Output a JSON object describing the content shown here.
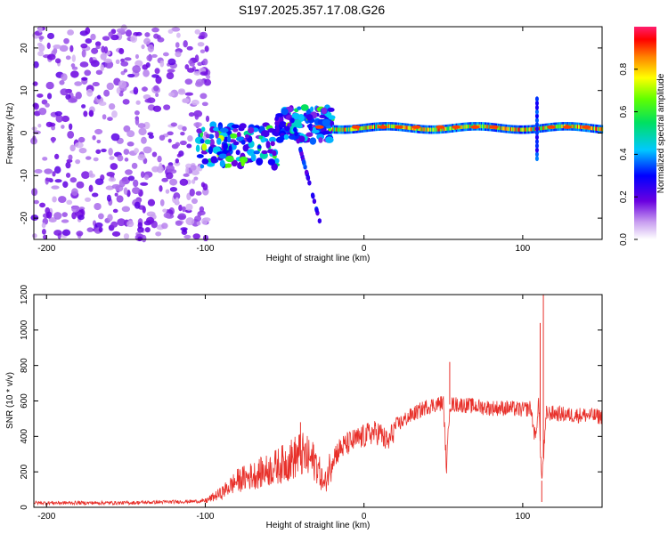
{
  "title": "S197.2025.357.17.08.G26",
  "chart_data": [
    {
      "type": "heatmap",
      "xlabel": "Height of straight line (km)",
      "ylabel": "Frequency (Hz)",
      "xlim": [
        -208,
        150
      ],
      "ylim": [
        -25,
        25
      ],
      "xticks": [
        -200,
        -100,
        0,
        100
      ],
      "xtick_labels": [
        "-200",
        "-100",
        "0",
        "100"
      ],
      "yticks": [
        -20,
        -10,
        0,
        10,
        20
      ],
      "ytick_labels": [
        "-20",
        "-10",
        "0",
        "10",
        "20"
      ],
      "colorbar": {
        "label": "Normalized spectral amplitude",
        "range": [
          0,
          1
        ],
        "ticks": [
          0,
          0.2,
          0.4,
          0.6,
          0.8
        ],
        "tick_labels": [
          "0.0",
          "0.2",
          "0.4",
          "0.6",
          "0.8"
        ]
      },
      "description_regions": [
        {
          "x_range": [
            -208,
            -98
          ],
          "freq_range": [
            -25,
            25
          ],
          "amplitude": 0.1,
          "pattern": "noise"
        },
        {
          "x_range": [
            -105,
            -55
          ],
          "freq_center": -3,
          "freq_spread": 5,
          "amplitude": 0.3
        },
        {
          "x_range": [
            -55,
            -20
          ],
          "freq_center": 2,
          "freq_spread": 4,
          "amplitude": 0.3
        },
        {
          "x_range": [
            -20,
            150
          ],
          "freq_center": 1.2,
          "freq_spread": 1.0,
          "amplitude": 0.75
        }
      ]
    },
    {
      "type": "line",
      "xlabel": "Height of straight line (km)",
      "ylabel": "SNR (10 * v/v)",
      "xlim": [
        -208,
        150
      ],
      "ylim": [
        0,
        1200
      ],
      "xticks": [
        -200,
        -100,
        0,
        100
      ],
      "xtick_labels": [
        "-200",
        "-100",
        "0",
        "100"
      ],
      "yticks": [
        0,
        200,
        400,
        600,
        800,
        1000,
        1200
      ],
      "ytick_labels": [
        "0",
        "200",
        "400",
        "600",
        "800",
        "1000",
        "1200"
      ],
      "color": "#e8302a",
      "x": [
        -208,
        -150,
        -100,
        -90,
        -80,
        -70,
        -60,
        -50,
        -40,
        -30,
        -25,
        -20,
        -15,
        -10,
        -5,
        0,
        5,
        10,
        15,
        20,
        30,
        40,
        50,
        52,
        54,
        60,
        70,
        80,
        90,
        100,
        105,
        108,
        110,
        112,
        115,
        120,
        130,
        140,
        150
      ],
      "values": [
        25,
        25,
        35,
        80,
        150,
        180,
        210,
        250,
        300,
        250,
        120,
        280,
        330,
        360,
        380,
        400,
        420,
        420,
        360,
        460,
        520,
        570,
        590,
        220,
        580,
        580,
        570,
        560,
        560,
        550,
        560,
        380,
        600,
        150,
        530,
        530,
        520,
        520,
        510
      ],
      "spikes": [
        {
          "x": -40,
          "y": 480
        },
        {
          "x": 54,
          "y": 820
        },
        {
          "x": 111,
          "y": 1040
        },
        {
          "x": 113,
          "y": 1230
        },
        {
          "x": 112,
          "y": 30
        }
      ]
    }
  ]
}
